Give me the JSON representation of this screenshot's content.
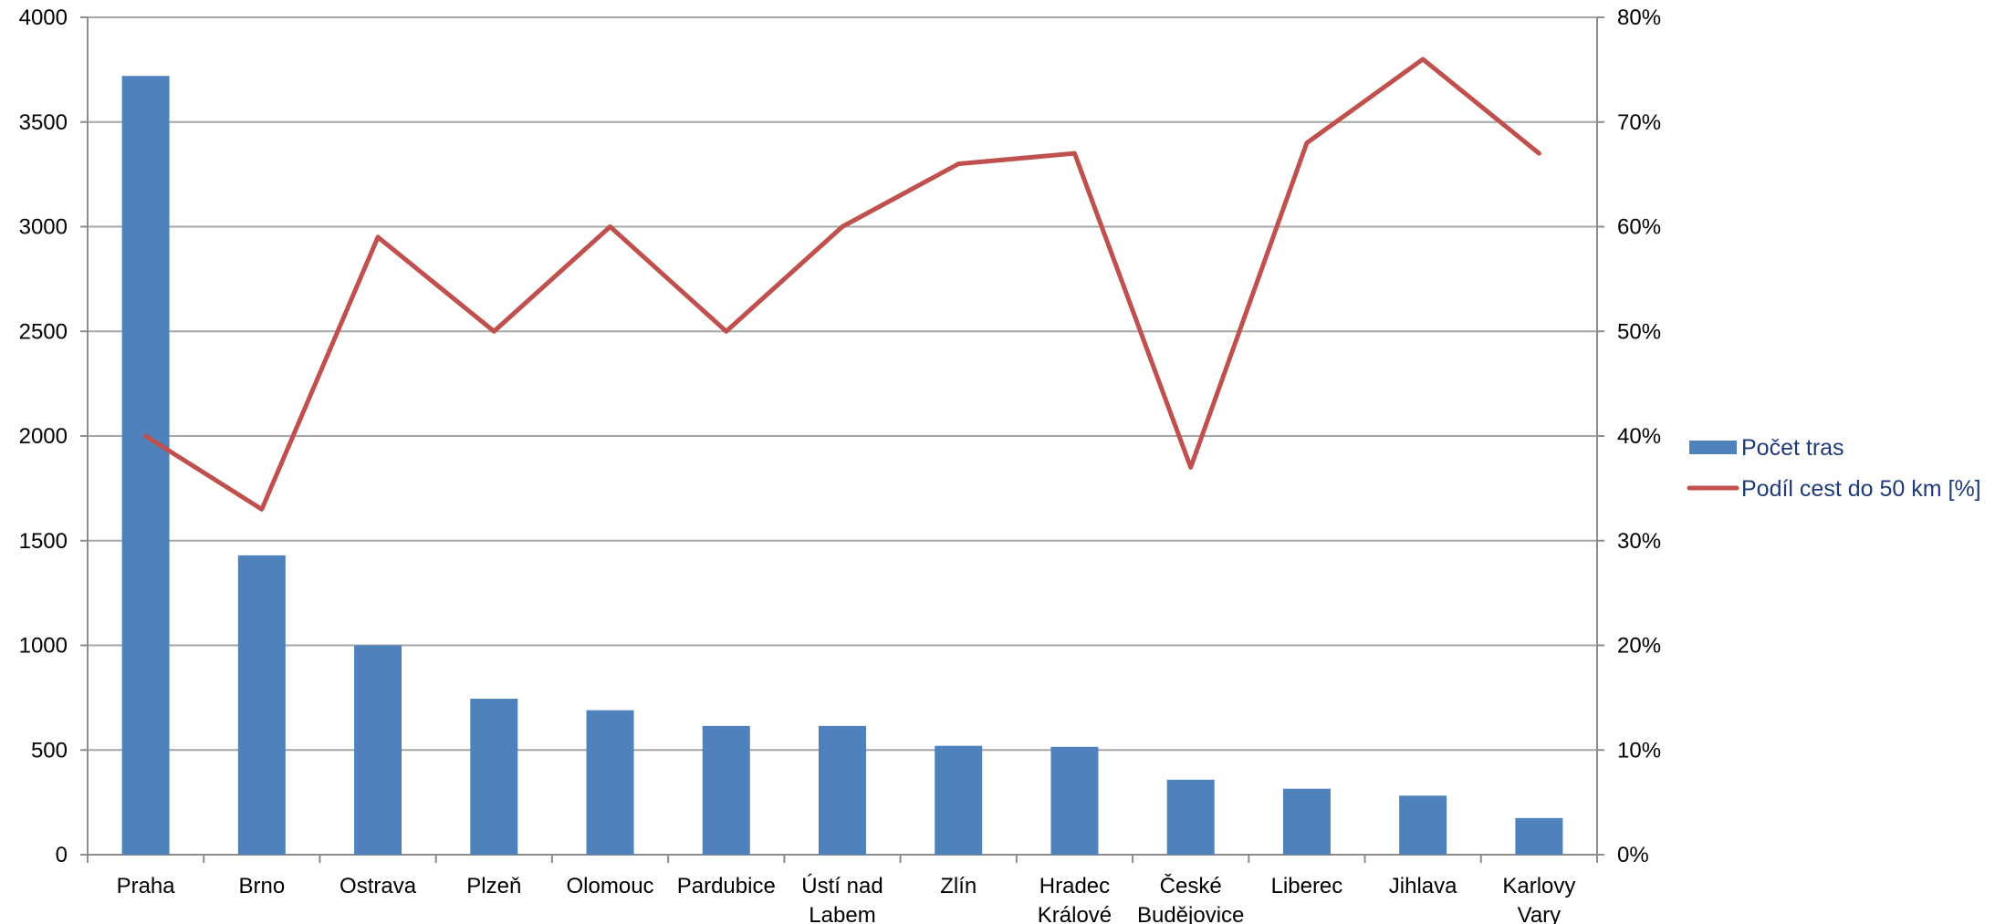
{
  "chart_data": {
    "type": "bar",
    "categories": [
      [
        "Praha"
      ],
      [
        "Brno"
      ],
      [
        "Ostrava"
      ],
      [
        "Plzeň"
      ],
      [
        "Olomouc"
      ],
      [
        "Pardubice"
      ],
      [
        "Ústí nad",
        "Labem"
      ],
      [
        "Zlín"
      ],
      [
        "Hradec",
        "Králové"
      ],
      [
        "České",
        "Budějovice"
      ],
      [
        "Liberec"
      ],
      [
        "Jihlava"
      ],
      [
        "Karlovy",
        "Vary"
      ]
    ],
    "series": [
      {
        "name": "Počet tras",
        "type": "bar",
        "axis": "left",
        "color": "#4f81bd",
        "values": [
          3720,
          1430,
          1000,
          745,
          690,
          615,
          615,
          520,
          515,
          358,
          315,
          282,
          175
        ]
      },
      {
        "name": "Podíl cest do 50 km [%]",
        "type": "line",
        "axis": "right",
        "color": "#c0504d",
        "values": [
          40,
          33,
          59,
          50,
          60,
          50,
          60,
          66,
          67,
          37,
          68,
          76,
          67
        ]
      }
    ],
    "y_left": {
      "min": 0,
      "max": 4000,
      "step": 500,
      "ticks": [
        "0",
        "500",
        "1000",
        "1500",
        "2000",
        "2500",
        "3000",
        "3500",
        "4000"
      ]
    },
    "y_right": {
      "min": 0,
      "max": 80,
      "step": 10,
      "ticks": [
        "0%",
        "10%",
        "20%",
        "30%",
        "40%",
        "50%",
        "60%",
        "70%",
        "80%"
      ]
    },
    "grid": true,
    "legend_position": "right",
    "title": "",
    "xlabel": "",
    "ylabel": ""
  }
}
